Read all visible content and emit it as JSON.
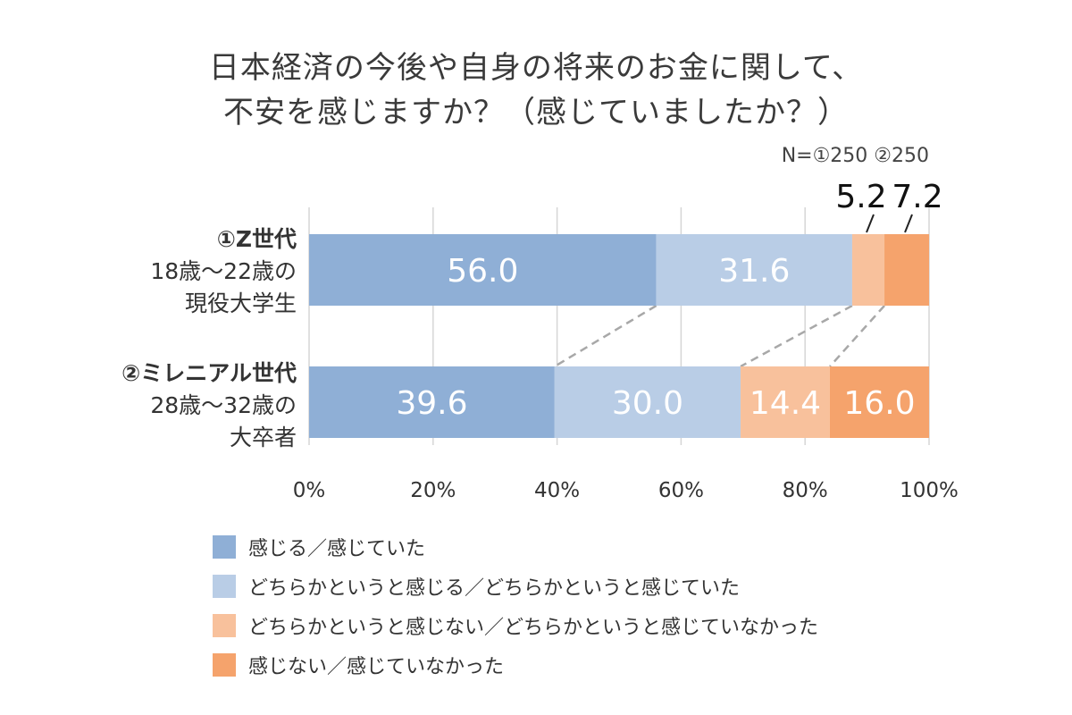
{
  "title_line1": "日本経済の今後や自身の将来のお金に関して、",
  "title_line2": "不安を感じますか？（感じていましたか？）",
  "n_label": "N=①250 ②250",
  "chart_data": {
    "type": "bar",
    "orientation": "horizontal",
    "stacked": true,
    "percent_axis": true,
    "xlim": [
      0,
      100
    ],
    "tick_labels": [
      "0%",
      "20%",
      "40%",
      "60%",
      "80%",
      "100%"
    ],
    "grid": true,
    "categories": [
      {
        "line1": "①Z世代",
        "line2": "18歳～22歳の",
        "line3": "現役大学生"
      },
      {
        "line1": "②ミレニアル世代",
        "line2": "28歳～32歳の",
        "line3": "大卒者"
      }
    ],
    "series": [
      {
        "name": "感じる／感じていた",
        "color": "#8fafd6",
        "values": [
          56.0,
          39.6
        ]
      },
      {
        "name": "どちらかというと感じる／どちらかというと感じていた",
        "color": "#b9cde6",
        "values": [
          31.6,
          30.0
        ]
      },
      {
        "name": "どちらかというと感じない／どちらかというと感じていなかった",
        "color": "#f8c19c",
        "values": [
          5.2,
          14.4
        ]
      },
      {
        "name": "感じない／感じていなかった",
        "color": "#f5a36c",
        "values": [
          7.2,
          16.0
        ]
      }
    ],
    "data_labels": [
      [
        "56.0",
        "31.6",
        "5.2",
        "7.2"
      ],
      [
        "39.6",
        "30.0",
        "14.4",
        "16.0"
      ]
    ],
    "legend_position": "bottom-left"
  }
}
